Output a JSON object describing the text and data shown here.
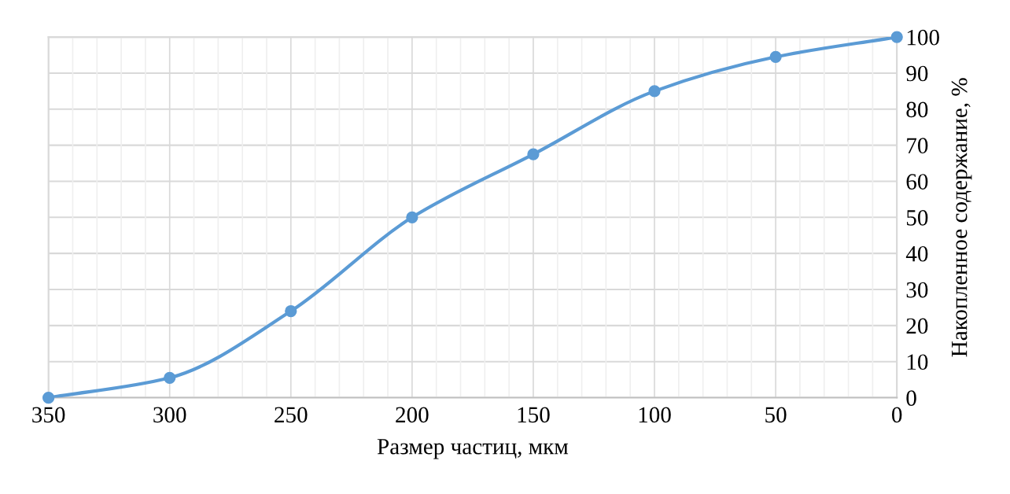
{
  "chart_data": {
    "type": "line",
    "xlabel": "Размер частиц, мкм",
    "ylabel": "Накопленное содержание, %",
    "x": [
      350,
      300,
      250,
      200,
      150,
      100,
      50,
      0
    ],
    "series": [
      {
        "color": "#5b9bd5",
        "values": [
          0,
          5.5,
          24,
          50,
          67.5,
          85,
          94.5,
          100
        ]
      }
    ],
    "xlim": [
      350,
      0
    ],
    "xticks": [
      350,
      300,
      250,
      200,
      150,
      100,
      50,
      0
    ],
    "ylim": [
      0,
      100
    ],
    "yticks": [
      0,
      10,
      20,
      30,
      40,
      50,
      60,
      70,
      80,
      90,
      100
    ],
    "grid": true,
    "marker": "circle",
    "line_style": "solid"
  }
}
